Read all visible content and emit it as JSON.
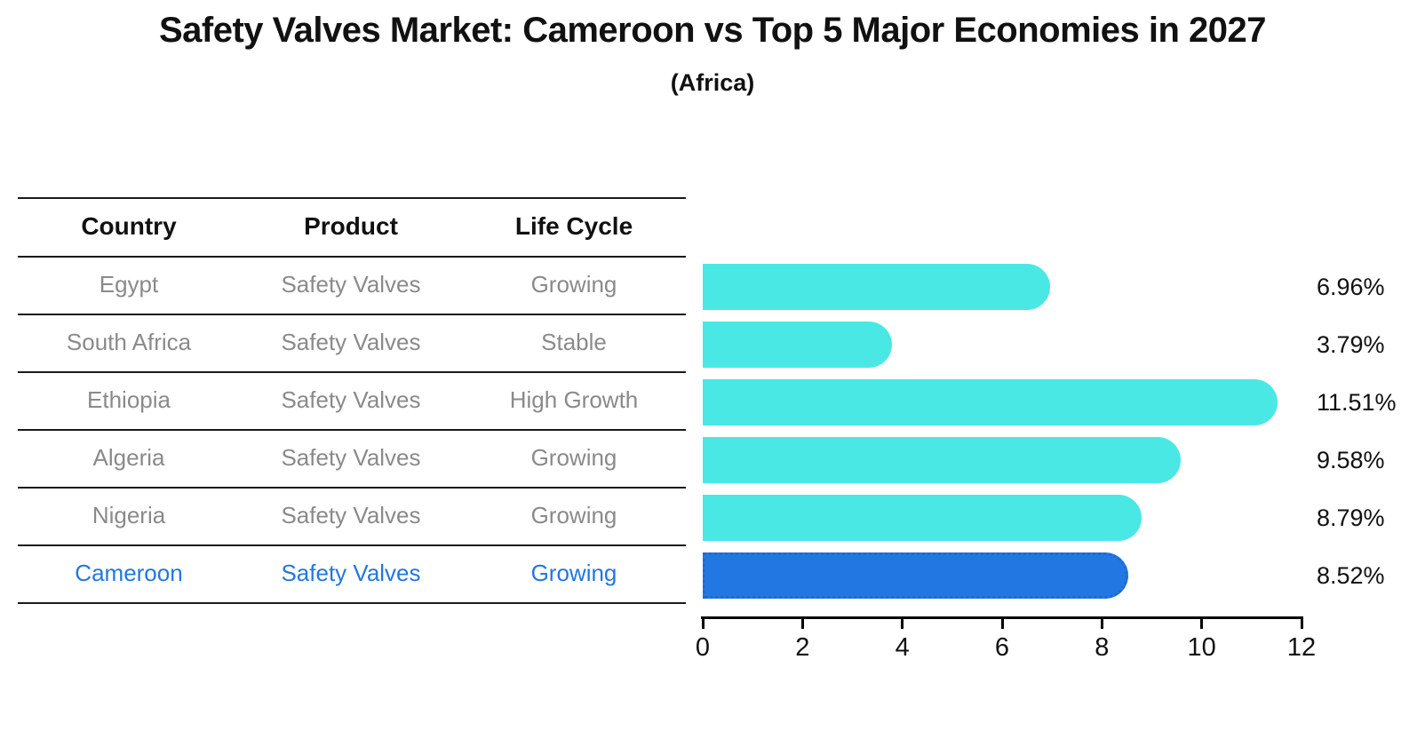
{
  "title": "Safety Valves Market: Cameroon vs Top 5 Major Economies in 2027",
  "subtitle": "(Africa)",
  "table": {
    "headers": [
      "Country",
      "Product",
      "Life Cycle"
    ],
    "rows": [
      {
        "country": "Egypt",
        "product": "Safety Valves",
        "life_cycle": "Growing"
      },
      {
        "country": "South Africa",
        "product": "Safety Valves",
        "life_cycle": "Stable"
      },
      {
        "country": "Ethiopia",
        "product": "Safety Valves",
        "life_cycle": "High Growth"
      },
      {
        "country": "Algeria",
        "product": "Safety Valves",
        "life_cycle": "Growing"
      },
      {
        "country": "Nigeria",
        "product": "Safety Valves",
        "life_cycle": "Growing"
      },
      {
        "country": "Cameroon",
        "product": "Safety Valves",
        "life_cycle": "Growing"
      }
    ],
    "highlight_row": "Cameroon"
  },
  "chart_data": {
    "type": "bar",
    "orientation": "horizontal",
    "title": "Safety Valves Market: Cameroon vs Top 5 Major Economies in 2027",
    "subtitle": "(Africa)",
    "categories": [
      "Egypt",
      "South Africa",
      "Ethiopia",
      "Algeria",
      "Nigeria",
      "Cameroon"
    ],
    "values": [
      6.96,
      3.79,
      11.51,
      9.58,
      8.79,
      8.52
    ],
    "value_labels": [
      "6.96%",
      "3.79%",
      "11.51%",
      "9.58%",
      "8.79%",
      "8.52%"
    ],
    "unit": "%",
    "xlim": [
      0,
      12
    ],
    "x_ticks": [
      "0",
      "2",
      "4",
      "6",
      "8",
      "10",
      "12"
    ],
    "grid": false,
    "legend": false,
    "highlight_index": 5,
    "bar_color": "#4AE8E4",
    "highlight_bar_color": "#2377E2",
    "highlight_border_color": "#1E6AD2"
  },
  "colors": {
    "text_primary": "#111111",
    "text_muted": "#8A8A8A",
    "highlight_text": "#2277DF",
    "table_line": "#1A1A1A",
    "axis": "#000000",
    "background": "#FFFFFF"
  }
}
